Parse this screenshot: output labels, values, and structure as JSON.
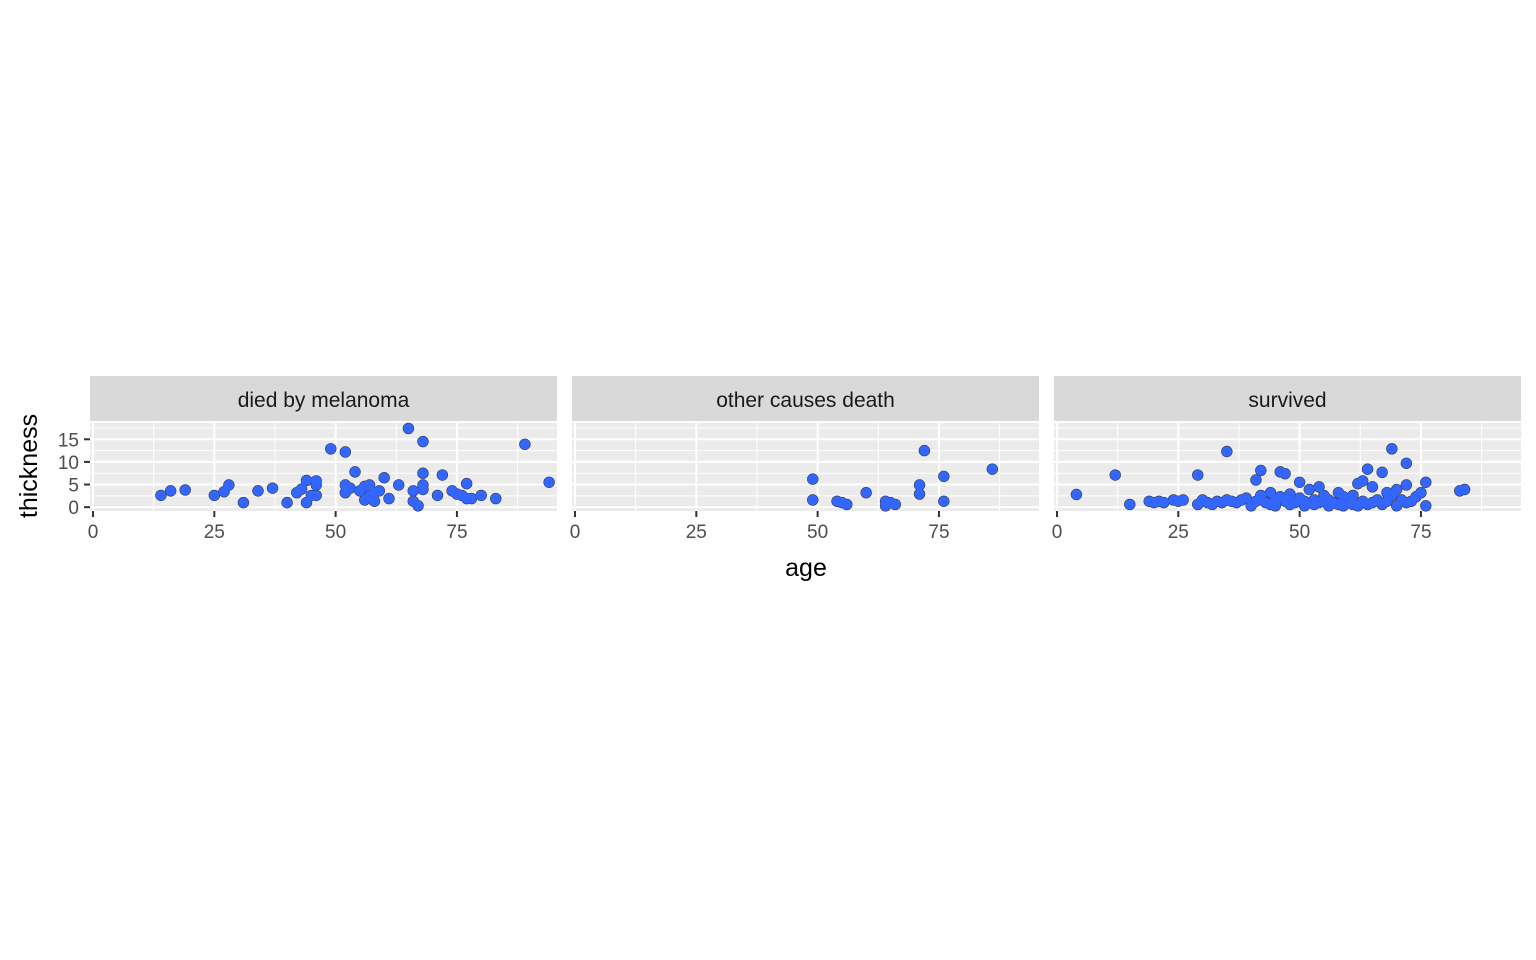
{
  "chart_data": {
    "type": "scatter",
    "xlabel": "age",
    "ylabel": "thickness",
    "xlim": [
      0,
      95
    ],
    "ylim": [
      0,
      17
    ],
    "x_ticks": [
      0,
      25,
      50,
      75
    ],
    "y_ticks": [
      0,
      5,
      10,
      15
    ],
    "grid": true,
    "colors": {
      "points": "#4d4d4d",
      "smooth_points": "#3366ff",
      "panel": "#ebebeb",
      "strip": "#d9d9d9"
    },
    "panels": [
      {
        "label": "died by melanoma",
        "points": [
          [
            14,
            2.6
          ],
          [
            16,
            3.6
          ],
          [
            19,
            3.8
          ],
          [
            25,
            2.6
          ],
          [
            27,
            3.4
          ],
          [
            28,
            4.9
          ],
          [
            31,
            1.0
          ],
          [
            34,
            3.6
          ],
          [
            37,
            4.2
          ],
          [
            40,
            1.0
          ],
          [
            42,
            3.2
          ],
          [
            43,
            4.0
          ],
          [
            44,
            5.9
          ],
          [
            44,
            1.0
          ],
          [
            45,
            2.6
          ],
          [
            46,
            5.8
          ],
          [
            46,
            4.9
          ],
          [
            46,
            2.6
          ],
          [
            49,
            12.9
          ],
          [
            52,
            12.2
          ],
          [
            52,
            4.9
          ],
          [
            52,
            3.2
          ],
          [
            53,
            4.2
          ],
          [
            54,
            7.8
          ],
          [
            55,
            3.6
          ],
          [
            56,
            4.6
          ],
          [
            56,
            1.6
          ],
          [
            57,
            4.9
          ],
          [
            57,
            2.6
          ],
          [
            58,
            3.2
          ],
          [
            58,
            1.3
          ],
          [
            59,
            3.6
          ],
          [
            60,
            6.5
          ],
          [
            61,
            1.9
          ],
          [
            63,
            4.9
          ],
          [
            65,
            17.4
          ],
          [
            66,
            1.3
          ],
          [
            66,
            3.6
          ],
          [
            67,
            0.3
          ],
          [
            68,
            14.5
          ],
          [
            68,
            7.5
          ],
          [
            68,
            4.9
          ],
          [
            68,
            3.9
          ],
          [
            71,
            2.6
          ],
          [
            72,
            7.1
          ],
          [
            74,
            3.6
          ],
          [
            75,
            2.9
          ],
          [
            76,
            2.6
          ],
          [
            77,
            5.2
          ],
          [
            77,
            1.9
          ],
          [
            78,
            1.9
          ],
          [
            80,
            2.6
          ],
          [
            83,
            1.9
          ],
          [
            89,
            13.9
          ],
          [
            94,
            5.5
          ]
        ]
      },
      {
        "label": "other causes death",
        "points": [
          [
            49,
            6.2
          ],
          [
            49,
            1.6
          ],
          [
            54,
            1.3
          ],
          [
            55,
            1.0
          ],
          [
            56,
            0.6
          ],
          [
            60,
            3.2
          ],
          [
            64,
            0.3
          ],
          [
            64,
            1.3
          ],
          [
            65,
            1.0
          ],
          [
            66,
            0.6
          ],
          [
            71,
            4.9
          ],
          [
            71,
            2.9
          ],
          [
            72,
            12.5
          ],
          [
            76,
            6.8
          ],
          [
            76,
            1.3
          ],
          [
            86,
            8.4
          ]
        ]
      },
      {
        "label": "survived",
        "points": [
          [
            4,
            2.8
          ],
          [
            12,
            7.1
          ],
          [
            15,
            0.6
          ],
          [
            19,
            1.3
          ],
          [
            20,
            1.0
          ],
          [
            21,
            1.3
          ],
          [
            22,
            1.0
          ],
          [
            24,
            1.6
          ],
          [
            25,
            1.3
          ],
          [
            26,
            1.6
          ],
          [
            29,
            7.1
          ],
          [
            29,
            0.6
          ],
          [
            30,
            1.6
          ],
          [
            31,
            1.0
          ],
          [
            32,
            0.6
          ],
          [
            33,
            1.3
          ],
          [
            34,
            1.0
          ],
          [
            35,
            12.3
          ],
          [
            35,
            1.6
          ],
          [
            36,
            1.3
          ],
          [
            37,
            1.0
          ],
          [
            38,
            1.6
          ],
          [
            39,
            2.0
          ],
          [
            40,
            0.3
          ],
          [
            41,
            6.0
          ],
          [
            41,
            1.3
          ],
          [
            42,
            2.6
          ],
          [
            42,
            8.1
          ],
          [
            43,
            1.0
          ],
          [
            44,
            0.6
          ],
          [
            44,
            3.2
          ],
          [
            45,
            1.6
          ],
          [
            45,
            0.3
          ],
          [
            46,
            7.8
          ],
          [
            46,
            2.3
          ],
          [
            47,
            7.4
          ],
          [
            47,
            1.3
          ],
          [
            48,
            0.6
          ],
          [
            48,
            2.9
          ],
          [
            49,
            1.0
          ],
          [
            50,
            5.5
          ],
          [
            50,
            2.0
          ],
          [
            51,
            0.3
          ],
          [
            51,
            1.3
          ],
          [
            52,
            3.9
          ],
          [
            53,
            1.6
          ],
          [
            53,
            0.6
          ],
          [
            54,
            4.5
          ],
          [
            54,
            1.0
          ],
          [
            55,
            2.6
          ],
          [
            56,
            0.3
          ],
          [
            56,
            1.6
          ],
          [
            57,
            1.0
          ],
          [
            58,
            3.2
          ],
          [
            58,
            0.6
          ],
          [
            59,
            2.3
          ],
          [
            59,
            0.3
          ],
          [
            60,
            1.6
          ],
          [
            60,
            1.0
          ],
          [
            61,
            2.6
          ],
          [
            61,
            0.6
          ],
          [
            62,
            0.3
          ],
          [
            62,
            5.2
          ],
          [
            63,
            5.8
          ],
          [
            63,
            1.3
          ],
          [
            64,
            8.4
          ],
          [
            64,
            0.6
          ],
          [
            65,
            1.0
          ],
          [
            65,
            4.5
          ],
          [
            66,
            1.6
          ],
          [
            67,
            0.6
          ],
          [
            67,
            7.7
          ],
          [
            68,
            3.2
          ],
          [
            68,
            1.3
          ],
          [
            69,
            12.9
          ],
          [
            69,
            2.6
          ],
          [
            70,
            0.3
          ],
          [
            70,
            3.9
          ],
          [
            71,
            1.6
          ],
          [
            72,
            9.7
          ],
          [
            72,
            4.9
          ],
          [
            72,
            1.0
          ],
          [
            73,
            1.3
          ],
          [
            74,
            2.3
          ],
          [
            75,
            3.2
          ],
          [
            76,
            5.5
          ],
          [
            76,
            0.3
          ],
          [
            83,
            3.6
          ],
          [
            84,
            3.9
          ]
        ]
      }
    ]
  }
}
